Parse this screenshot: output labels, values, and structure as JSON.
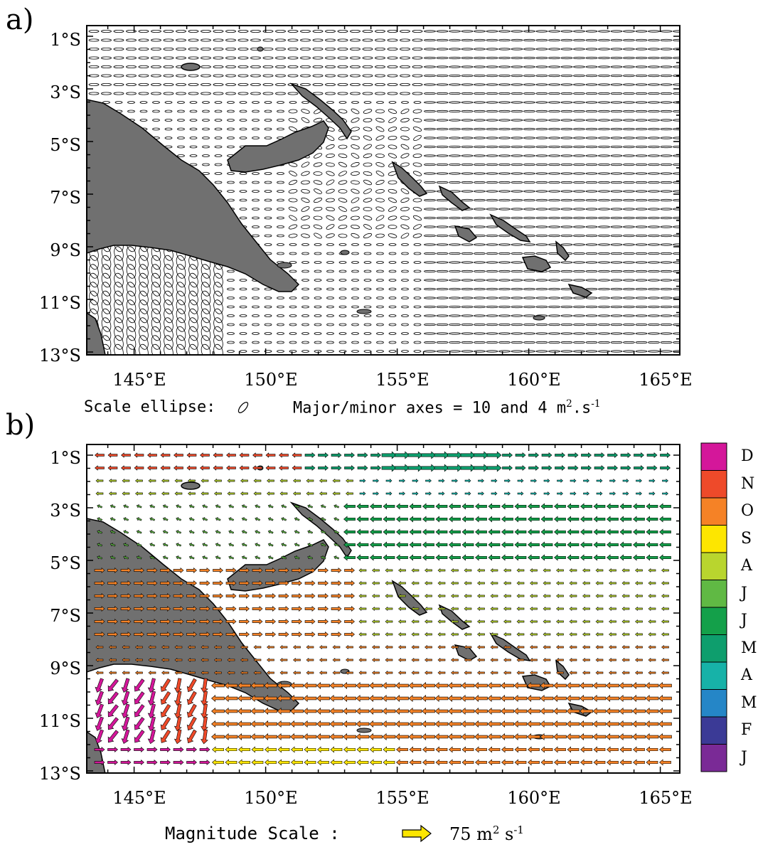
{
  "panel_a": {
    "letter": "a)",
    "lat_labels": [
      "1°S",
      "3°S",
      "5°S",
      "7°S",
      "9°S",
      "11°S",
      "13°S"
    ],
    "lon_labels": [
      "145°E",
      "150°E",
      "155°E",
      "160°E",
      "165°E"
    ],
    "scale_note": "Scale ellipse:",
    "axes_note_pre": "Major/minor axes = 10 and 4 m",
    "axes_note_sup": "2",
    "axes_note_post": ".s",
    "axes_note_sup2": "-1"
  },
  "panel_b": {
    "letter": "b)",
    "lat_labels": [
      "1°S",
      "3°S",
      "5°S",
      "7°S",
      "9°S",
      "11°S",
      "13°S"
    ],
    "lon_labels": [
      "145°E",
      "150°E",
      "155°E",
      "160°E",
      "165°E"
    ],
    "magnitude_note": "Magnitude Scale :",
    "magnitude_value_pre": "75 m",
    "magnitude_value_sup": "2",
    "magnitude_value_mid": " s",
    "magnitude_value_sup2": "-1"
  },
  "legend": {
    "months": [
      {
        "label": "D",
        "color": "#d4179a"
      },
      {
        "label": "N",
        "color": "#ee4a2a"
      },
      {
        "label": "O",
        "color": "#f58226"
      },
      {
        "label": "S",
        "color": "#fde600"
      },
      {
        "label": "A",
        "color": "#b9d52e"
      },
      {
        "label": "J",
        "color": "#60b944"
      },
      {
        "label": "J",
        "color": "#14a04a"
      },
      {
        "label": "M",
        "color": "#0e9e6d"
      },
      {
        "label": "A",
        "color": "#17b2a8"
      },
      {
        "label": "M",
        "color": "#2586c7"
      },
      {
        "label": "F",
        "color": "#3b3a96"
      },
      {
        "label": "J",
        "color": "#7a2a96"
      }
    ]
  },
  "colors": {
    "land": "#707070",
    "arrow_scale": "#fde600"
  }
}
